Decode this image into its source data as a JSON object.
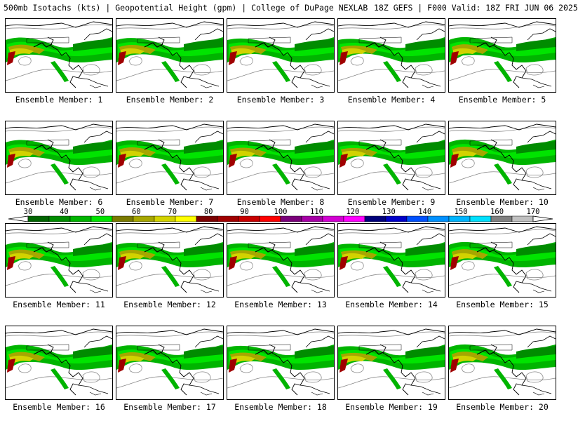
{
  "header": {
    "title": "500mb Isotachs (kts) | Geopotential Height (gpm) | College of DuPage NEXLAB",
    "run_info": "18Z GEFS | F000 Valid: 18Z FRI JUN 06 2025"
  },
  "panels": [
    {
      "label": "Ensemble Member: 1"
    },
    {
      "label": "Ensemble Member: 2"
    },
    {
      "label": "Ensemble Member: 3"
    },
    {
      "label": "Ensemble Member: 4"
    },
    {
      "label": "Ensemble Member: 5"
    },
    {
      "label": "Ensemble Member: 6"
    },
    {
      "label": "Ensemble Member: 7"
    },
    {
      "label": "Ensemble Member: 8"
    },
    {
      "label": "Ensemble Member: 9"
    },
    {
      "label": "Ensemble Member: 10"
    },
    {
      "label": "Ensemble Member: 11"
    },
    {
      "label": "Ensemble Member: 12"
    },
    {
      "label": "Ensemble Member: 13"
    },
    {
      "label": "Ensemble Member: 14"
    },
    {
      "label": "Ensemble Member: 15"
    },
    {
      "label": "Ensemble Member: 16"
    },
    {
      "label": "Ensemble Member: 17"
    },
    {
      "label": "Ensemble Member: 18"
    },
    {
      "label": "Ensemble Member: 19"
    },
    {
      "label": "Ensemble Member: 20"
    }
  ],
  "colorbar": {
    "tick_labels": [
      "30",
      "40",
      "50",
      "60",
      "70",
      "80",
      "90",
      "100",
      "110",
      "120",
      "130",
      "140",
      "150",
      "160",
      "170"
    ],
    "colors": [
      "#006400",
      "#008c00",
      "#00b400",
      "#00e400",
      "#7a7a00",
      "#a6a600",
      "#d2d200",
      "#ffff00",
      "#7a0000",
      "#a00000",
      "#c80000",
      "#ff0000",
      "#7a007a",
      "#a600a6",
      "#d200d2",
      "#ff00ff",
      "#00007a",
      "#0000c8",
      "#0050ff",
      "#0090ff",
      "#00b4ff",
      "#00e0ff",
      "#808080",
      "#c0c0c0"
    ]
  }
}
